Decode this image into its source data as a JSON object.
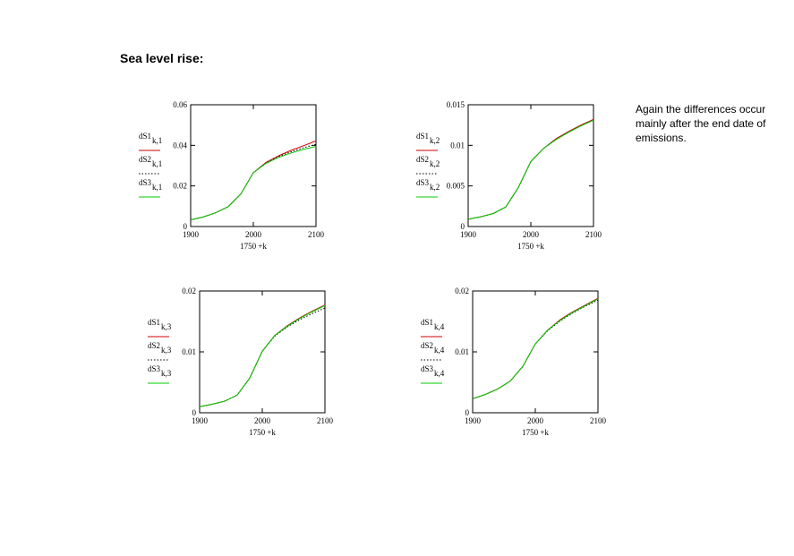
{
  "title": "Sea level rise:",
  "note": "Again the differences occur mainly after the end date of emissions.",
  "colors": {
    "dS1": "#cc0000",
    "dS2": "#000000",
    "dS3": "#00cc00",
    "frame": "#000000"
  },
  "chart_data": [
    {
      "type": "line",
      "xlabel": "1750 +k",
      "xlim": [
        1900,
        2100
      ],
      "x_ticks": [
        1900,
        2000,
        2100
      ],
      "x_tick_labels": [
        "1900",
        "2000",
        "2100"
      ],
      "ylim": [
        0,
        0.06
      ],
      "y_ticks": [
        0,
        0.02,
        0.04,
        0.06
      ],
      "y_tick_labels": [
        "0",
        "0.02",
        "0.04",
        "0.06"
      ],
      "legend": [
        {
          "name": "dS1",
          "sub": "k,1",
          "style": "solid"
        },
        {
          "name": "dS2",
          "sub": "k,1",
          "style": "dotted"
        },
        {
          "name": "dS3",
          "sub": "k,1",
          "style": "solid"
        }
      ],
      "x": [
        1900,
        1920,
        1940,
        1960,
        1980,
        2000,
        2020,
        2040,
        2060,
        2080,
        2100
      ],
      "series": [
        {
          "key": "dS1",
          "values": [
            0.0033,
            0.0047,
            0.0068,
            0.0098,
            0.016,
            0.0265,
            0.0315,
            0.0348,
            0.0375,
            0.0398,
            0.0422
          ]
        },
        {
          "key": "dS2",
          "values": [
            0.0033,
            0.0047,
            0.0068,
            0.0098,
            0.016,
            0.0265,
            0.0313,
            0.0344,
            0.0368,
            0.0388,
            0.0405
          ]
        },
        {
          "key": "dS3",
          "values": [
            0.0033,
            0.0047,
            0.0068,
            0.0098,
            0.016,
            0.0265,
            0.0311,
            0.034,
            0.0362,
            0.038,
            0.0395
          ]
        }
      ]
    },
    {
      "type": "line",
      "xlabel": "1750 +k",
      "xlim": [
        1900,
        2100
      ],
      "x_ticks": [
        1900,
        2000,
        2100
      ],
      "x_tick_labels": [
        "1900",
        "2000",
        "2100"
      ],
      "ylim": [
        0,
        0.015
      ],
      "y_ticks": [
        0,
        0.005,
        0.01,
        0.015
      ],
      "y_tick_labels": [
        "0",
        "0.005",
        "0.01",
        "0.015"
      ],
      "legend": [
        {
          "name": "dS1",
          "sub": "k,2",
          "style": "solid"
        },
        {
          "name": "dS2",
          "sub": "k,2",
          "style": "dotted"
        },
        {
          "name": "dS3",
          "sub": "k,2",
          "style": "solid"
        }
      ],
      "x": [
        1900,
        1920,
        1940,
        1960,
        1980,
        2000,
        2020,
        2040,
        2060,
        2080,
        2100
      ],
      "series": [
        {
          "key": "dS1",
          "values": [
            0.0009,
            0.0012,
            0.0016,
            0.0024,
            0.0048,
            0.008,
            0.0096,
            0.0108,
            0.0117,
            0.0125,
            0.0132
          ]
        },
        {
          "key": "dS2",
          "values": [
            0.0009,
            0.0012,
            0.0016,
            0.0024,
            0.0048,
            0.008,
            0.0096,
            0.0107,
            0.0116,
            0.0124,
            0.0131
          ]
        },
        {
          "key": "dS3",
          "values": [
            0.0009,
            0.0012,
            0.0016,
            0.0024,
            0.0048,
            0.008,
            0.0096,
            0.0107,
            0.0116,
            0.0124,
            0.0131
          ]
        }
      ]
    },
    {
      "type": "line",
      "xlabel": "1750 +k",
      "xlim": [
        1900,
        2100
      ],
      "x_ticks": [
        1900,
        2000,
        2100
      ],
      "x_tick_labels": [
        "1900",
        "2000",
        "2100"
      ],
      "ylim": [
        0,
        0.02
      ],
      "y_ticks": [
        0,
        0.01,
        0.02
      ],
      "y_tick_labels": [
        "0",
        "0.01",
        "0.02"
      ],
      "legend": [
        {
          "name": "dS1",
          "sub": "k,3",
          "style": "solid"
        },
        {
          "name": "dS2",
          "sub": "k,3",
          "style": "dotted"
        },
        {
          "name": "dS3",
          "sub": "k,3",
          "style": "solid"
        }
      ],
      "x": [
        1900,
        1920,
        1940,
        1960,
        1980,
        2000,
        2020,
        2040,
        2060,
        2080,
        2100
      ],
      "series": [
        {
          "key": "dS1",
          "values": [
            0.001,
            0.0014,
            0.0019,
            0.0029,
            0.0057,
            0.0101,
            0.0127,
            0.0143,
            0.0156,
            0.0167,
            0.0177
          ]
        },
        {
          "key": "dS2",
          "values": [
            0.001,
            0.0014,
            0.0019,
            0.0029,
            0.0057,
            0.0101,
            0.0126,
            0.0141,
            0.0153,
            0.0163,
            0.0172
          ]
        },
        {
          "key": "dS3",
          "values": [
            0.001,
            0.0014,
            0.0019,
            0.0029,
            0.0057,
            0.0101,
            0.0127,
            0.0142,
            0.0155,
            0.0166,
            0.0176
          ]
        }
      ]
    },
    {
      "type": "line",
      "xlabel": "1750 +k",
      "xlim": [
        1900,
        2100
      ],
      "x_ticks": [
        1900,
        2000,
        2100
      ],
      "x_tick_labels": [
        "1900",
        "2000",
        "2100"
      ],
      "ylim": [
        0,
        0.02
      ],
      "y_ticks": [
        0,
        0.01,
        0.02
      ],
      "y_tick_labels": [
        "0",
        "0.01",
        "0.02"
      ],
      "legend": [
        {
          "name": "dS1",
          "sub": "k,4",
          "style": "solid"
        },
        {
          "name": "dS2",
          "sub": "k,4",
          "style": "dotted"
        },
        {
          "name": "dS3",
          "sub": "k,4",
          "style": "solid"
        }
      ],
      "x": [
        1900,
        1920,
        1940,
        1960,
        1980,
        2000,
        2020,
        2040,
        2060,
        2080,
        2100
      ],
      "series": [
        {
          "key": "dS1",
          "values": [
            0.0023,
            0.003,
            0.0039,
            0.0052,
            0.0076,
            0.0113,
            0.0136,
            0.0153,
            0.0166,
            0.0177,
            0.0188
          ]
        },
        {
          "key": "dS2",
          "values": [
            0.0023,
            0.003,
            0.0039,
            0.0052,
            0.0076,
            0.0113,
            0.0135,
            0.0151,
            0.0164,
            0.0175,
            0.0185
          ]
        },
        {
          "key": "dS3",
          "values": [
            0.0023,
            0.003,
            0.0039,
            0.0052,
            0.0076,
            0.0113,
            0.0136,
            0.0152,
            0.0165,
            0.0176,
            0.0187
          ]
        }
      ]
    }
  ]
}
